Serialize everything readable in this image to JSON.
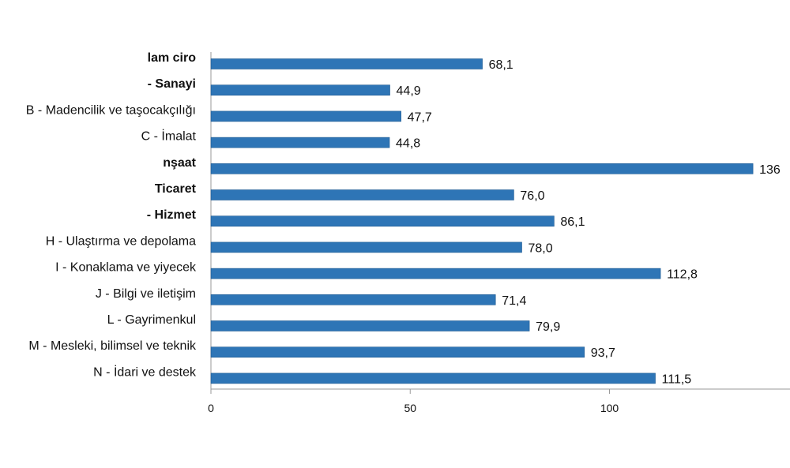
{
  "chart_data": {
    "type": "bar",
    "orientation": "horizontal",
    "title": "",
    "xlabel": "",
    "ylabel": "",
    "xlim": [
      0,
      142
    ],
    "xticks": [
      "0",
      "50",
      "100"
    ],
    "grid": false,
    "legend": "none",
    "bar_color": "#2e75b6",
    "categories": [
      "lam ciro",
      "- Sanayi",
      "B - Madencilik ve taşocakçılığı",
      "C - İmalat",
      "nşaat",
      "Ticaret",
      "- Hizmet",
      "H - Ulaştırma ve depolama",
      "I - Konaklama ve yiyecek",
      "J - Bilgi ve iletişim",
      "L - Gayrimenkul",
      "M - Mesleki, bilimsel ve teknik",
      "N - İdari ve destek"
    ],
    "bold": [
      true,
      true,
      false,
      false,
      true,
      true,
      true,
      false,
      false,
      false,
      false,
      false,
      false
    ],
    "values": [
      68.1,
      44.9,
      47.7,
      44.8,
      136,
      76.0,
      86.1,
      78.0,
      112.8,
      71.4,
      79.9,
      93.7,
      111.5
    ],
    "value_labels": [
      "68,1",
      "44,9",
      "47,7",
      "44,8",
      "136",
      "76,0",
      "86,1",
      "78,0",
      "112,8",
      "71,4",
      "79,9",
      "93,7",
      "111,5"
    ]
  }
}
